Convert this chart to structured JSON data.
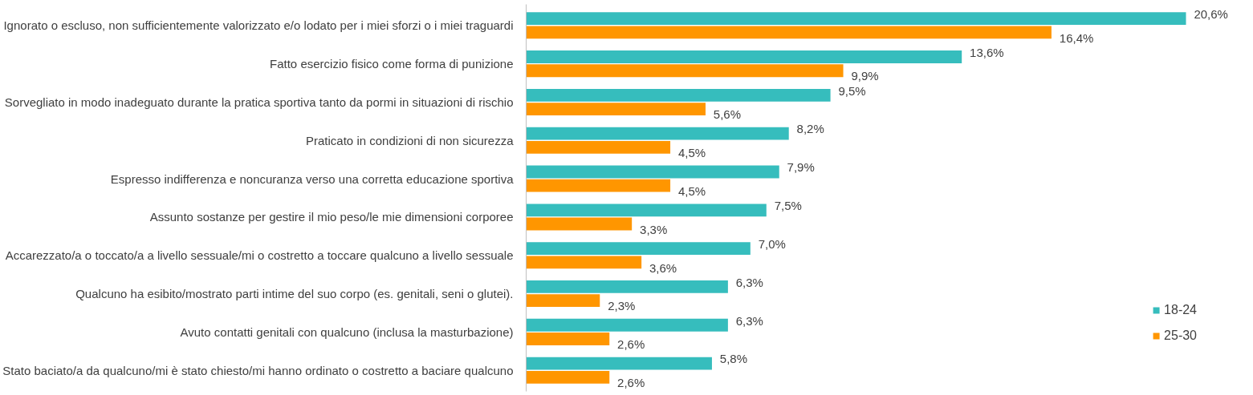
{
  "chart_data": {
    "type": "bar",
    "orientation": "horizontal",
    "categories": [
      "Ignorato o escluso, non sufficientemente valorizzato e/o lodato per i miei sforzi o i miei traguardi",
      "Fatto esercizio fisico come forma di punizione",
      "Sorvegliato in modo inadeguato durante la pratica sportiva tanto da pormi in situazioni di rischio",
      "Praticato in condizioni di non sicurezza",
      "Espresso indifferenza e noncuranza verso una corretta educazione sportiva",
      "Assunto sostanze per gestire il mio peso/le mie dimensioni corporee",
      "Accarezzato/a o toccato/a a livello sessuale/mi o costretto a toccare qualcuno a livello sessuale",
      "Qualcuno ha esibito/mostrato parti intime del suo corpo (es. genitali, seni o glutei).",
      "Avuto contatti genitali con qualcuno (inclusa la masturbazione)",
      "Stato baciato/a da qualcuno/mi è stato chiesto/mi hanno ordinato o costretto a baciare qualcuno"
    ],
    "series": [
      {
        "name": "18-24",
        "color": "#36bdbd",
        "values": [
          20.6,
          13.6,
          9.5,
          8.2,
          7.9,
          7.5,
          7.0,
          6.3,
          6.3,
          5.8
        ],
        "value_labels": [
          "20,6%",
          "13,6%",
          "9,5%",
          "8,2%",
          "7,9%",
          "7,5%",
          "7,0%",
          "6,3%",
          "6,3%",
          "5,8%"
        ]
      },
      {
        "name": "25-30",
        "color": "#ff9600",
        "values": [
          16.4,
          9.9,
          5.6,
          4.5,
          4.5,
          3.3,
          3.6,
          2.3,
          2.6,
          2.6
        ],
        "value_labels": [
          "16,4%",
          "9,9%",
          "5,6%",
          "4,5%",
          "4,5%",
          "3,3%",
          "3,6%",
          "2,3%",
          "2,6%",
          "2,6%"
        ]
      }
    ],
    "legend": "bottom right",
    "grid": false
  }
}
